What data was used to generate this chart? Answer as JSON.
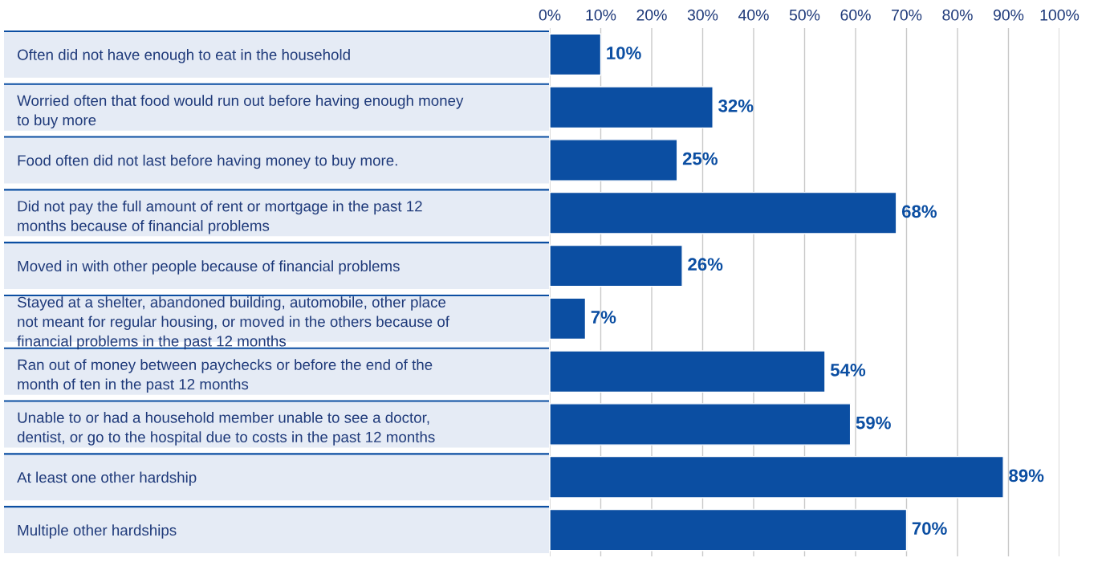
{
  "chart_data": {
    "type": "bar",
    "orientation": "horizontal",
    "categories": [
      "Often did not have enough to eat in the household",
      "Worried often that food would run out before having enough money\nto buy more",
      "Food often did not last before having money to buy more.",
      "Did not pay the full amount of rent or mortgage in the past 12\nmonths because of financial problems",
      "Moved in with other people because of financial problems",
      "Stayed at a shelter, abandoned building, automobile, other place\nnot meant for regular housing, or moved in the others because of\nfinancial problems in the past 12 months",
      "Ran out of money between paychecks or before the end of the\nmonth of ten in the past 12 months",
      "Unable to or had a household member unable to see a doctor,\ndentist, or go to the hospital due to costs in the past 12 months",
      "At least one other hardship",
      "Multiple other hardships"
    ],
    "values": [
      10,
      32,
      25,
      68,
      26,
      7,
      54,
      59,
      89,
      70
    ],
    "value_labels": [
      "10%",
      "32%",
      "25%",
      "68%",
      "26%",
      "7%",
      "54%",
      "59%",
      "89%",
      "70%"
    ],
    "color": "#0b4ea2",
    "xlim": [
      0,
      100
    ],
    "xticks": [
      {
        "value": 0,
        "label": "0%"
      },
      {
        "value": 10,
        "label": "10%"
      },
      {
        "value": 20,
        "label": "20%"
      },
      {
        "value": 30,
        "label": "30%"
      },
      {
        "value": 40,
        "label": "40%"
      },
      {
        "value": 50,
        "label": "50%"
      },
      {
        "value": 60,
        "label": "60%"
      },
      {
        "value": 70,
        "label": "70%"
      },
      {
        "value": 80,
        "label": "80%"
      },
      {
        "value": 90,
        "label": "90%"
      },
      {
        "value": 100,
        "label": "100%"
      }
    ],
    "grid": "x",
    "legend": false
  }
}
